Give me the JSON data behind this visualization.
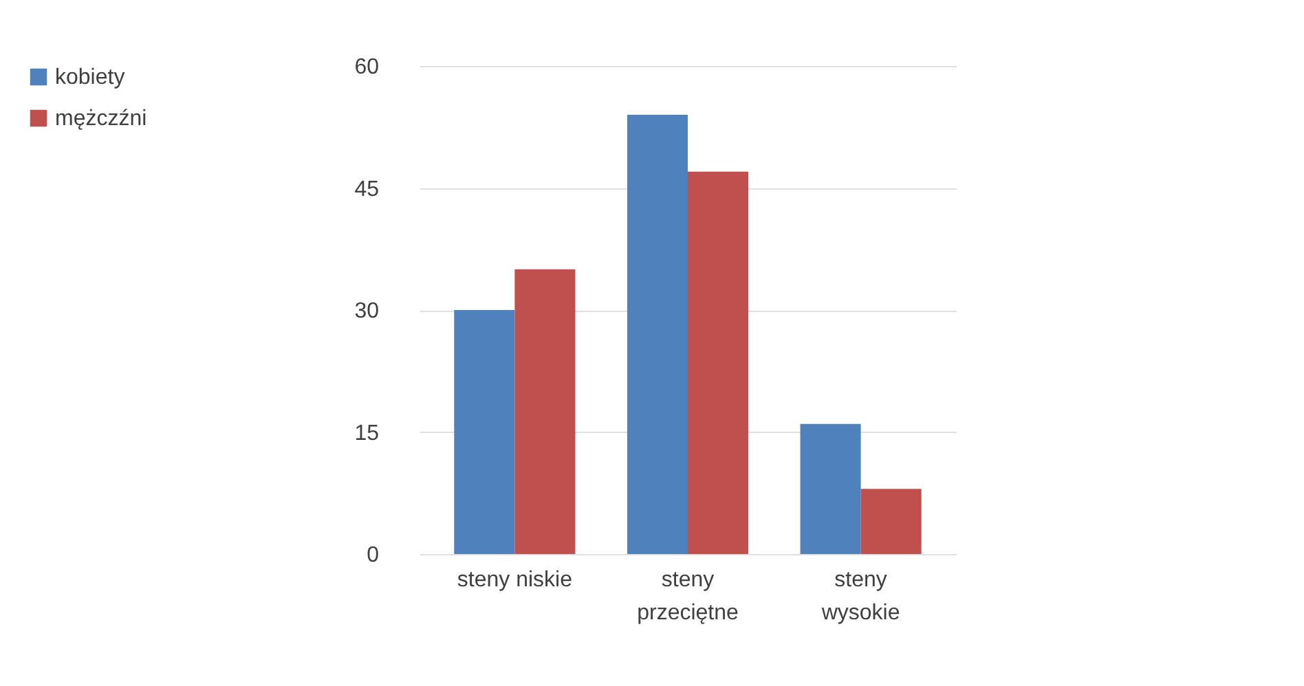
{
  "chart_data": {
    "type": "bar",
    "categories": [
      "steny niskie",
      "steny przeciętne",
      "steny wysokie"
    ],
    "series": [
      {
        "name": "kobiety",
        "color": "#4f81bd",
        "values": [
          30,
          54,
          16
        ]
      },
      {
        "name": "mężczźni",
        "color": "#c0504d",
        "values": [
          35,
          47,
          8
        ]
      }
    ],
    "ylim": [
      0,
      60
    ],
    "yticks": [
      0,
      15,
      30,
      45,
      60
    ],
    "grid": "y",
    "legend": "left"
  }
}
